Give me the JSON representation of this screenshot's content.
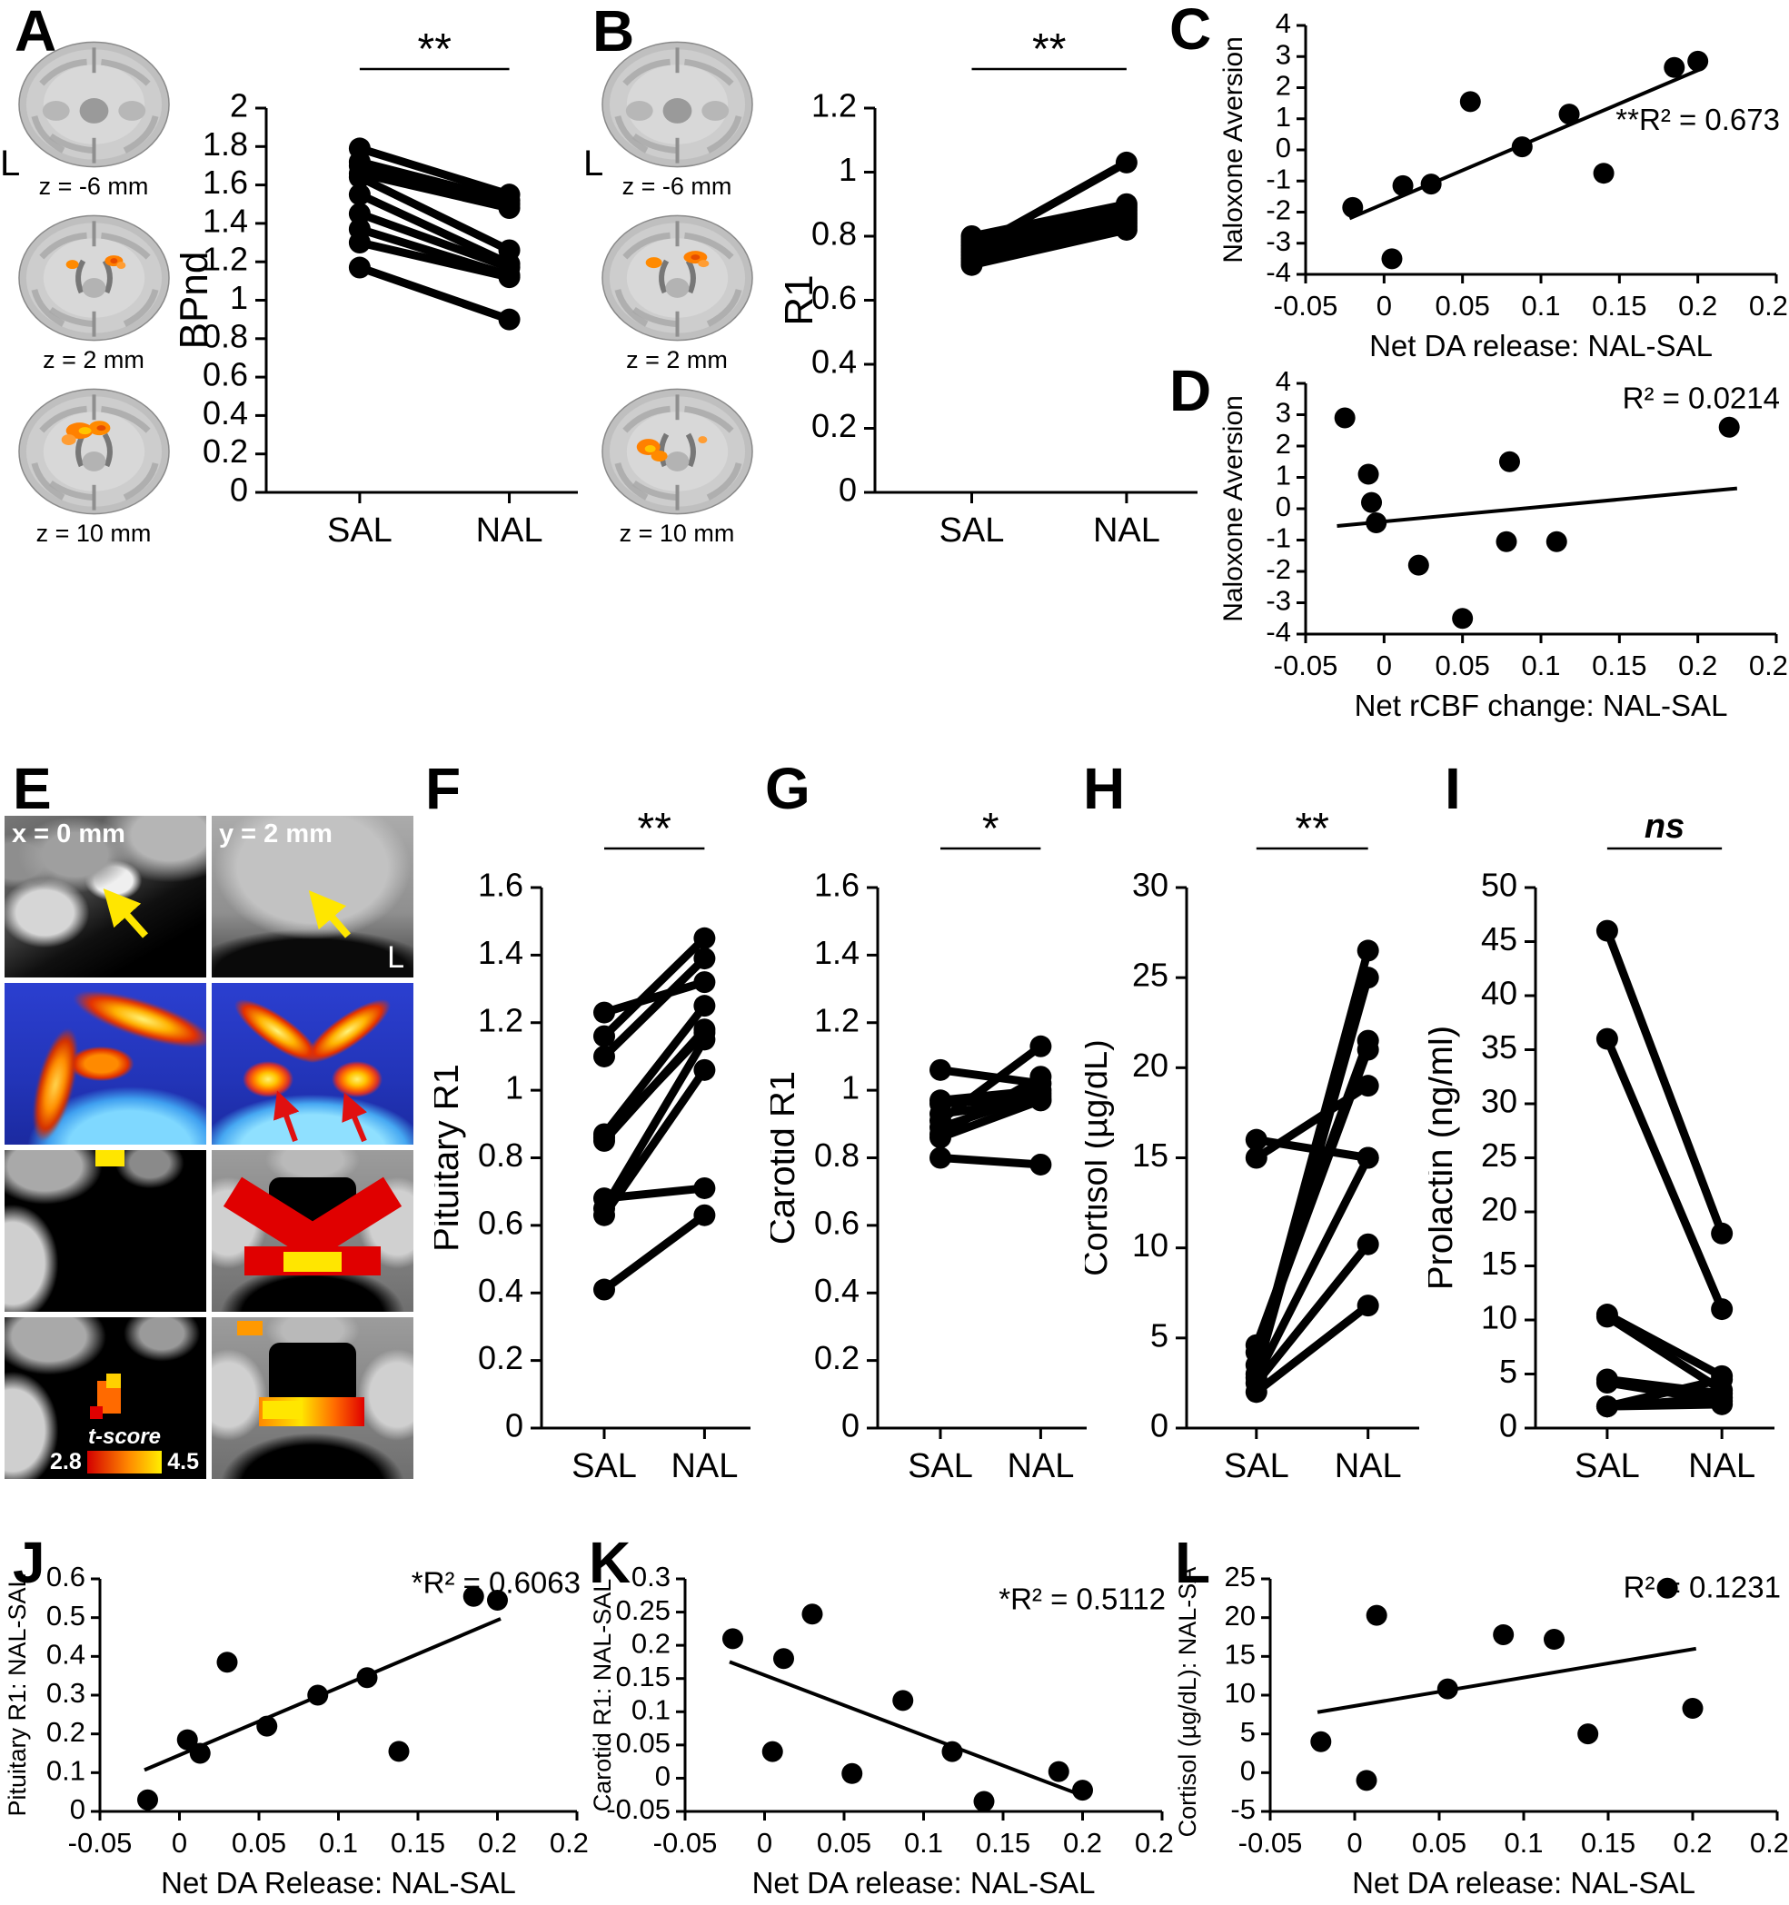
{
  "figure": {
    "background": "#ffffff",
    "accent_orange": "#ff8a00",
    "stat_red": "#e00000",
    "stat_yellow": "#ffe600"
  },
  "chart_data": [
    {
      "id": "A",
      "panel_letter": "A",
      "type": "paired",
      "ylabel": "BPnd",
      "ymin": 0,
      "ymax": 2,
      "ystep": 0.2,
      "significance": "**",
      "categories": [
        "SAL",
        "NAL"
      ],
      "pairs": [
        [
          1.79,
          1.55
        ],
        [
          1.72,
          1.52
        ],
        [
          1.7,
          1.5
        ],
        [
          1.66,
          1.48
        ],
        [
          1.64,
          1.26
        ],
        [
          1.55,
          1.19
        ],
        [
          1.45,
          1.17
        ],
        [
          1.37,
          1.13
        ],
        [
          1.3,
          1.12
        ],
        [
          1.17,
          0.9
        ]
      ]
    },
    {
      "id": "B",
      "panel_letter": "B",
      "type": "paired",
      "ylabel": "R1",
      "ymin": 0,
      "ymax": 1.2,
      "ystep": 0.2,
      "significance": "**",
      "categories": [
        "SAL",
        "NAL"
      ],
      "pairs": [
        [
          0.8,
          0.9
        ],
        [
          0.79,
          0.89
        ],
        [
          0.78,
          0.88
        ],
        [
          0.77,
          0.87
        ],
        [
          0.76,
          1.03
        ],
        [
          0.75,
          0.86
        ],
        [
          0.74,
          0.85
        ],
        [
          0.73,
          0.84
        ],
        [
          0.72,
          0.83
        ],
        [
          0.71,
          0.82
        ]
      ]
    },
    {
      "id": "C",
      "panel_letter": "C",
      "type": "scatter",
      "ylabel": "Naloxone Aversion",
      "xlabel": "Net DA release: NAL-SAL",
      "xmin": -0.05,
      "xmax": 0.25,
      "xstep": 0.05,
      "ymin": -4,
      "ymax": 4,
      "ystep": 1,
      "annotation": "**R² = 0.673",
      "annotation_fy": 0.42,
      "points": [
        [
          -0.02,
          -1.85
        ],
        [
          0.005,
          -3.5
        ],
        [
          0.012,
          -1.15
        ],
        [
          0.03,
          -1.1
        ],
        [
          0.055,
          1.55
        ],
        [
          0.088,
          0.1
        ],
        [
          0.118,
          1.15
        ],
        [
          0.14,
          -0.75
        ],
        [
          0.185,
          2.65
        ],
        [
          0.2,
          2.85
        ]
      ],
      "trend": [
        [
          -0.022,
          -2.2
        ],
        [
          0.202,
          2.6
        ]
      ]
    },
    {
      "id": "D",
      "panel_letter": "D",
      "type": "scatter",
      "ylabel": "Naloxone Aversion",
      "xlabel": "Net rCBF change: NAL-SAL",
      "xmin": -0.05,
      "xmax": 0.25,
      "xstep": 0.05,
      "ymin": -4,
      "ymax": 4,
      "ystep": 1,
      "annotation": "R² = 0.0214",
      "annotation_fy": 0.1,
      "points": [
        [
          -0.025,
          2.9
        ],
        [
          -0.01,
          1.1
        ],
        [
          -0.008,
          0.2
        ],
        [
          -0.005,
          -0.45
        ],
        [
          0.022,
          -1.8
        ],
        [
          0.05,
          -3.5
        ],
        [
          0.078,
          -1.05
        ],
        [
          0.08,
          1.5
        ],
        [
          0.11,
          -1.05
        ],
        [
          0.22,
          2.6
        ]
      ],
      "trend": [
        [
          -0.03,
          -0.55
        ],
        [
          0.225,
          0.65
        ]
      ]
    },
    {
      "id": "F",
      "panel_letter": "F",
      "type": "paired",
      "ylabel": "Pituitary R1",
      "ymin": 0,
      "ymax": 1.6,
      "ystep": 0.2,
      "significance": "**",
      "categories": [
        "SAL",
        "NAL"
      ],
      "pairs": [
        [
          1.23,
          1.32
        ],
        [
          1.16,
          1.45
        ],
        [
          1.1,
          1.39
        ],
        [
          0.87,
          1.25
        ],
        [
          0.86,
          1.17
        ],
        [
          0.85,
          1.18
        ],
        [
          0.68,
          0.71
        ],
        [
          0.65,
          1.15
        ],
        [
          0.63,
          1.06
        ],
        [
          0.41,
          0.63
        ]
      ]
    },
    {
      "id": "G",
      "panel_letter": "G",
      "type": "paired",
      "ylabel": "Carotid R1",
      "ymin": 0,
      "ymax": 1.6,
      "ystep": 0.2,
      "significance": "*",
      "categories": [
        "SAL",
        "NAL"
      ],
      "pairs": [
        [
          1.06,
          1.02
        ],
        [
          0.97,
          1.0
        ],
        [
          0.96,
          0.98
        ],
        [
          0.93,
          0.97
        ],
        [
          0.91,
          1.13
        ],
        [
          0.89,
          0.99
        ],
        [
          0.87,
          1.04
        ],
        [
          0.86,
          0.97
        ],
        [
          0.8,
          0.78
        ]
      ]
    },
    {
      "id": "H",
      "panel_letter": "H",
      "type": "paired",
      "ylabel": "Cortisol (µg/dL)",
      "ymin": 0,
      "ymax": 30,
      "ystep": 5,
      "significance": "**",
      "categories": [
        "SAL",
        "NAL"
      ],
      "pairs": [
        [
          16,
          15
        ],
        [
          15,
          19
        ],
        [
          4.6,
          21.5
        ],
        [
          4.2,
          21
        ],
        [
          3.5,
          26.5
        ],
        [
          3.0,
          25
        ],
        [
          2.8,
          15
        ],
        [
          2.5,
          10.2
        ],
        [
          2.0,
          6.8
        ]
      ]
    },
    {
      "id": "I",
      "panel_letter": "I",
      "type": "paired",
      "ylabel": "Prolactin (ng/ml)",
      "ymin": 0,
      "ymax": 50,
      "ystep": 5,
      "significance": "ns",
      "categories": [
        "SAL",
        "NAL"
      ],
      "pairs": [
        [
          46,
          18
        ],
        [
          36,
          11
        ],
        [
          10.5,
          4.8
        ],
        [
          10.3,
          3.5
        ],
        [
          4.5,
          3.2
        ],
        [
          4.2,
          2.5
        ],
        [
          2.0,
          4.5
        ],
        [
          2.0,
          2.8
        ],
        [
          2.0,
          2.2
        ]
      ]
    },
    {
      "id": "J",
      "panel_letter": "J",
      "type": "scatter",
      "ylabel": "Pituitary R1: NAL-SAL",
      "xlabel": "Net DA Release: NAL-SAL",
      "xmin": -0.05,
      "xmax": 0.25,
      "xstep": 0.05,
      "ymin": 0,
      "ymax": 0.6,
      "ystep": 0.1,
      "annotation": "*R² = 0.6063",
      "annotation_fy": 0.06,
      "points": [
        [
          -0.02,
          0.03
        ],
        [
          0.005,
          0.185
        ],
        [
          0.013,
          0.15
        ],
        [
          0.03,
          0.385
        ],
        [
          0.055,
          0.22
        ],
        [
          0.087,
          0.3
        ],
        [
          0.118,
          0.345
        ],
        [
          0.138,
          0.155
        ],
        [
          0.185,
          0.555
        ],
        [
          0.2,
          0.545
        ]
      ],
      "trend": [
        [
          -0.022,
          0.107
        ],
        [
          0.202,
          0.497
        ]
      ]
    },
    {
      "id": "K",
      "panel_letter": "K",
      "type": "scatter",
      "ylabel": "Carotid R1: NAL-SAL",
      "xlabel": "Net DA release: NAL-SAL",
      "xmin": -0.05,
      "xmax": 0.25,
      "xstep": 0.05,
      "ymin": -0.05,
      "ymax": 0.3,
      "ystep": 0.05,
      "annotation": "*R² = 0.5112",
      "annotation_fy": 0.13,
      "points": [
        [
          -0.02,
          0.21
        ],
        [
          0.005,
          0.04
        ],
        [
          0.012,
          0.18
        ],
        [
          0.03,
          0.247
        ],
        [
          0.055,
          0.007
        ],
        [
          0.087,
          0.117
        ],
        [
          0.118,
          0.04
        ],
        [
          0.138,
          -0.035
        ],
        [
          0.185,
          0.01
        ],
        [
          0.2,
          -0.018
        ]
      ],
      "trend": [
        [
          -0.022,
          0.175
        ],
        [
          0.202,
          -0.028
        ]
      ]
    },
    {
      "id": "L",
      "panel_letter": "L",
      "type": "scatter",
      "ylabel": "Cortisol (µg/dL): NAL-SAL",
      "xlabel": "Net DA release: NAL-SAL",
      "xmin": -0.05,
      "xmax": 0.25,
      "xstep": 0.05,
      "ymin": -5,
      "ymax": 25,
      "ystep": 5,
      "annotation": "R² = 0.1231",
      "annotation_fy": 0.08,
      "points": [
        [
          -0.02,
          4
        ],
        [
          0.007,
          -1
        ],
        [
          0.013,
          20.3
        ],
        [
          0.055,
          10.8
        ],
        [
          0.088,
          17.8
        ],
        [
          0.118,
          17.2
        ],
        [
          0.138,
          5
        ],
        [
          0.185,
          23.8
        ],
        [
          0.2,
          8.3
        ]
      ],
      "trend": [
        [
          -0.022,
          7.8
        ],
        [
          0.202,
          16.0
        ]
      ]
    }
  ],
  "brain_panels": {
    "A": {
      "left_marker": "L",
      "slices": [
        {
          "label": "z = -6 mm",
          "overlay": "none"
        },
        {
          "label": "z = 2 mm",
          "overlay": "striatum-small"
        },
        {
          "label": "z = 10 mm",
          "overlay": "striatum-large"
        }
      ]
    },
    "B": {
      "left_marker": "L",
      "slices": [
        {
          "label": "z = -6 mm",
          "overlay": "none"
        },
        {
          "label": "z = 2 mm",
          "overlay": "striatum-mid"
        },
        {
          "label": "z = 10 mm",
          "overlay": "striatum-left-large"
        }
      ]
    }
  },
  "panel_e": {
    "letter": "E",
    "tiles": [
      {
        "label": "x = 0 mm",
        "style": "mri-sag",
        "icon": "yellow-arrow"
      },
      {
        "label": "y = 2 mm",
        "style": "mri-cor",
        "icon": "yellow-arrow",
        "corner_marker": "L"
      },
      {
        "style": "jet-sag"
      },
      {
        "style": "jet-cor",
        "icon": "red-arrow",
        "icon2": "red-arrow"
      },
      {
        "style": "roi-sag"
      },
      {
        "style": "roi-cor"
      },
      {
        "style": "stat-sag",
        "colorbar": {
          "label": "t-score",
          "min": "2.8",
          "max": "4.5",
          "colors": [
            "#d40000",
            "#ff8800",
            "#ffee00"
          ]
        }
      },
      {
        "style": "stat-cor"
      }
    ]
  }
}
